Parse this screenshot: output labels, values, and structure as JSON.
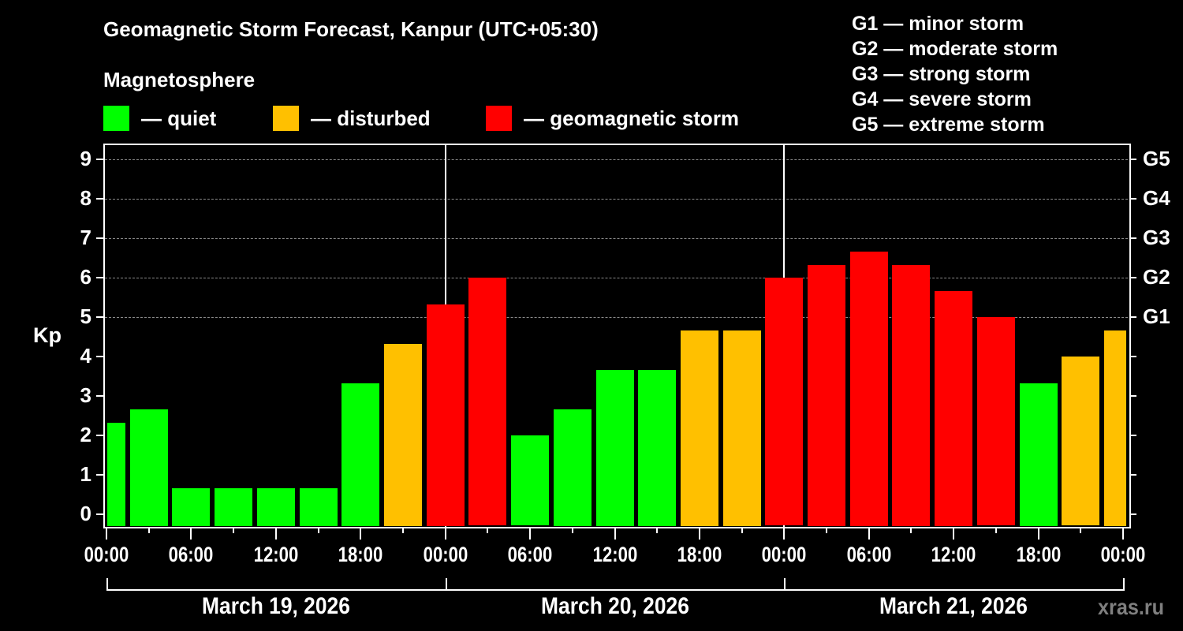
{
  "title": "Geomagnetic Storm Forecast, Kanpur (UTC+05:30)",
  "magnetosphere": {
    "heading": "Magnetosphere",
    "legend": [
      {
        "label": "— quiet",
        "color": "#00ff00"
      },
      {
        "label": "— disturbed",
        "color": "#ffc000"
      },
      {
        "label": "— geomagnetic storm",
        "color": "#ff0000"
      }
    ]
  },
  "g_scale_legend": [
    "G1 — minor storm",
    "G2 — moderate storm",
    "G3 — strong storm",
    "G4 — severe storm",
    "G5 — extreme storm"
  ],
  "y_axis": {
    "label": "Kp",
    "ticks": [
      "0",
      "1",
      "2",
      "3",
      "4",
      "5",
      "6",
      "7",
      "8",
      "9"
    ],
    "right_ticks": [
      {
        "kp": 5,
        "label": "G1"
      },
      {
        "kp": 6,
        "label": "G2"
      },
      {
        "kp": 7,
        "label": "G3"
      },
      {
        "kp": 8,
        "label": "G4"
      },
      {
        "kp": 9,
        "label": "G5"
      }
    ]
  },
  "x_axis": {
    "time_labels": [
      "00:00",
      "06:00",
      "12:00",
      "18:00",
      "00:00",
      "06:00",
      "12:00",
      "18:00",
      "00:00",
      "06:00",
      "12:00",
      "18:00",
      "00:00"
    ],
    "days": [
      "March 19, 2026",
      "March 20, 2026",
      "March 21, 2026"
    ]
  },
  "watermark": "xras.ru",
  "colors": {
    "quiet": "#00ff00",
    "disturbed": "#ffc000",
    "storm": "#ff0000",
    "background": "#000000",
    "axis": "#ffffff",
    "grid": "#8a8a8a"
  },
  "chart_data": {
    "type": "bar",
    "title": "Geomagnetic Storm Forecast, Kanpur (UTC+05:30)",
    "xlabel": "",
    "ylabel": "Kp",
    "ylim": [
      0,
      9
    ],
    "grid": "dashed horizontal lines at Kp 5–9",
    "interval_hours": 3,
    "categories": [
      "Mar 19 00:00",
      "Mar 19 03:00",
      "Mar 19 06:00",
      "Mar 19 09:00",
      "Mar 19 12:00",
      "Mar 19 15:00",
      "Mar 19 18:00",
      "Mar 19 21:00",
      "Mar 20 00:00",
      "Mar 20 03:00",
      "Mar 20 06:00",
      "Mar 20 09:00",
      "Mar 20 12:00",
      "Mar 20 15:00",
      "Mar 20 18:00",
      "Mar 20 21:00",
      "Mar 21 00:00",
      "Mar 21 03:00",
      "Mar 21 06:00",
      "Mar 21 09:00",
      "Mar 21 12:00",
      "Mar 21 15:00",
      "Mar 21 18:00",
      "Mar 21 21:00",
      "Mar 22 00:00"
    ],
    "values": [
      2.33,
      2.67,
      0.67,
      0.67,
      0.67,
      0.67,
      3.33,
      4.33,
      5.33,
      6.0,
      2.0,
      2.67,
      3.67,
      3.67,
      4.67,
      4.67,
      6.0,
      6.33,
      6.67,
      6.33,
      5.67,
      5.0,
      3.33,
      4.0,
      4.67
    ],
    "status": [
      "quiet",
      "quiet",
      "quiet",
      "quiet",
      "quiet",
      "quiet",
      "quiet",
      "disturbed",
      "storm",
      "storm",
      "quiet",
      "quiet",
      "quiet",
      "quiet",
      "disturbed",
      "disturbed",
      "storm",
      "storm",
      "storm",
      "storm",
      "storm",
      "storm",
      "quiet",
      "disturbed",
      "disturbed"
    ],
    "legend": [
      "quiet",
      "disturbed",
      "geomagnetic storm"
    ],
    "right_axis_labels": {
      "5": "G1",
      "6": "G2",
      "7": "G3",
      "8": "G4",
      "9": "G5"
    }
  }
}
